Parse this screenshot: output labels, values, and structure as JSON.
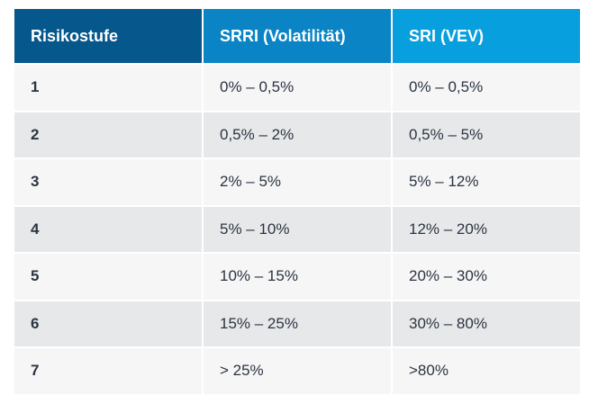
{
  "table": {
    "headers": [
      "Risikostufe",
      "SRRI (Volatilität)",
      "SRI (VEV)"
    ],
    "rows": [
      {
        "level": "1",
        "srri": "0% – 0,5%",
        "sri": "0% – 0,5%"
      },
      {
        "level": "2",
        "srri": "0,5% – 2%",
        "sri": "0,5% – 5%"
      },
      {
        "level": "3",
        "srri": "2% – 5%",
        "sri": "5% – 12%"
      },
      {
        "level": "4",
        "srri": "5% – 10%",
        "sri": "12% – 20%"
      },
      {
        "level": "5",
        "srri": "10% – 15%",
        "sri": "20% – 30%"
      },
      {
        "level": "6",
        "srri": "15% – 25%",
        "sri": "30% – 80%"
      },
      {
        "level": "7",
        "srri": "> 25%",
        "sri": ">80%"
      }
    ]
  },
  "colors": {
    "header_col1": "#06578b",
    "header_col2": "#0a84c5",
    "header_col3": "#079fde",
    "row_light": "#f6f6f7",
    "row_dark": "#e7e8ea",
    "text": "#2b3440"
  }
}
